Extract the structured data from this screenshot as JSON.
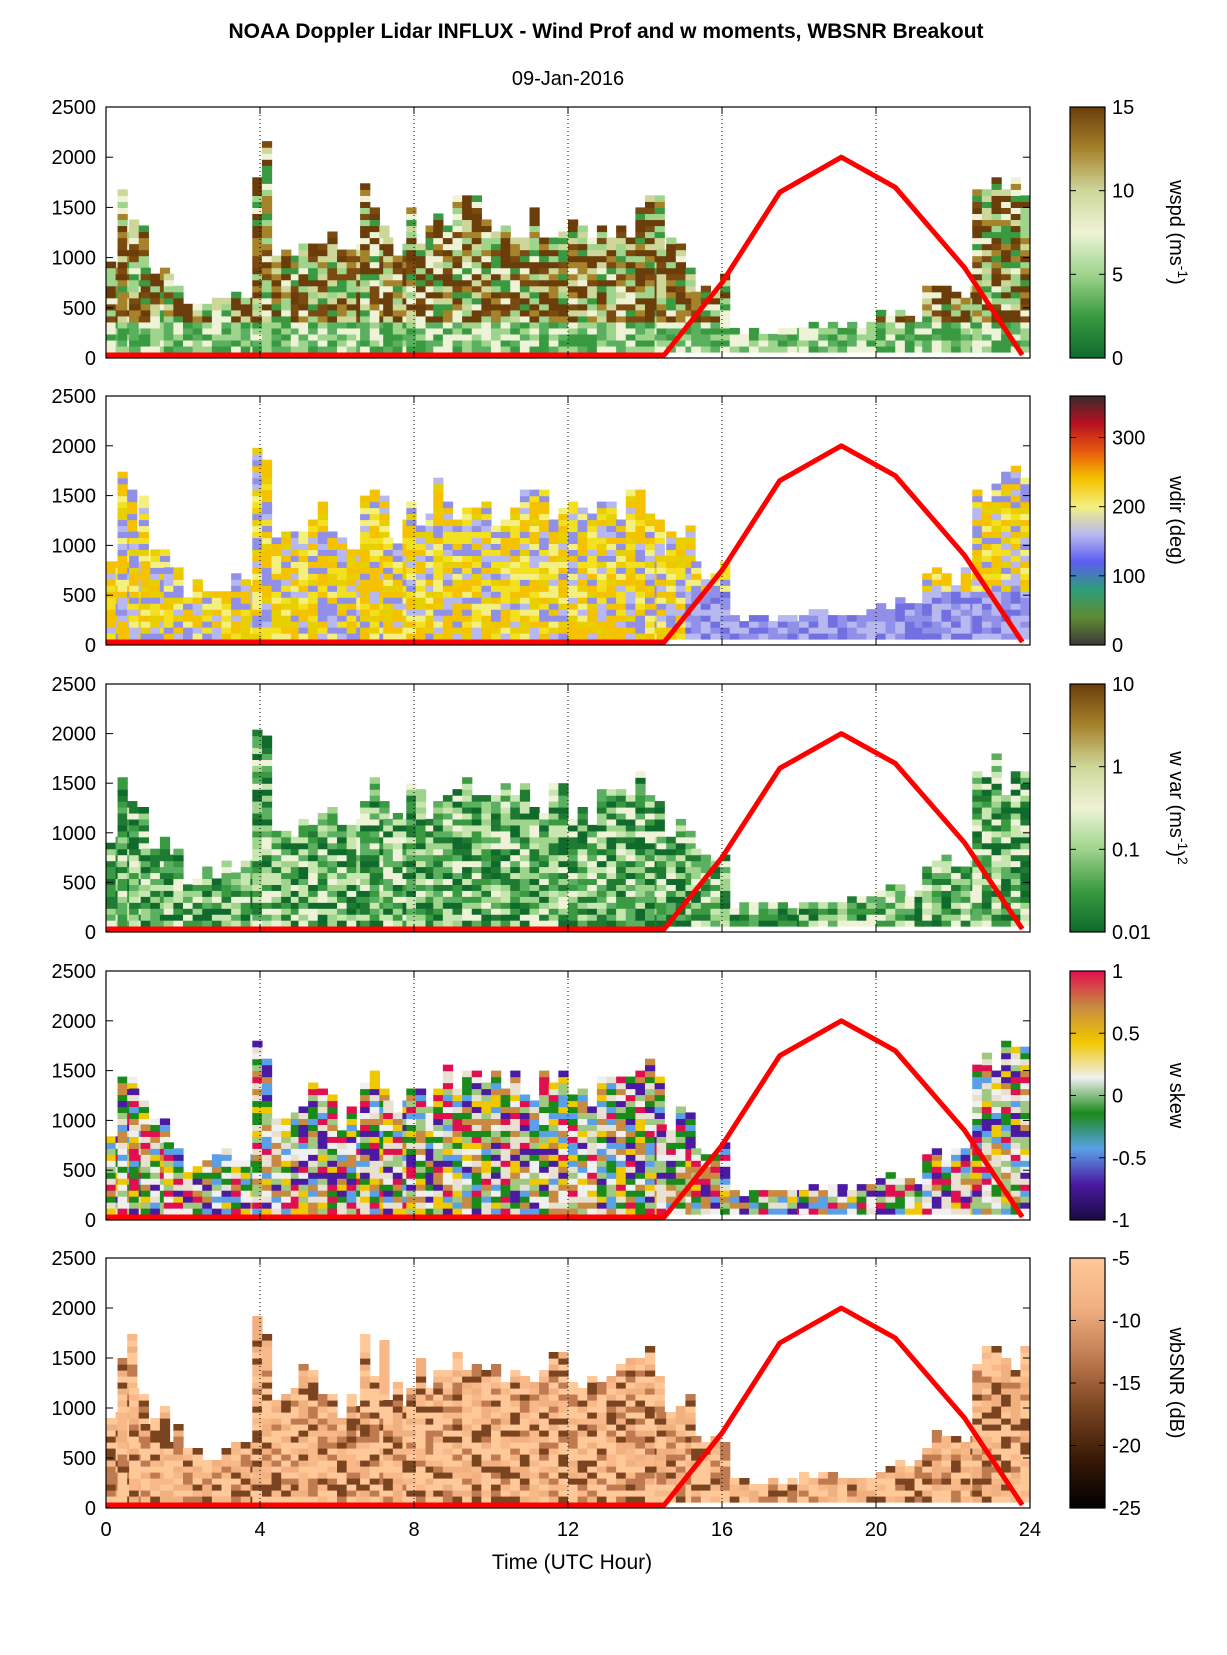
{
  "figure": {
    "title": "NOAA Doppler Lidar INFLUX - Wind Prof and w moments, WBSNR Breakout",
    "subtitle": "09-Jan-2016",
    "xlabel": "Time (UTC Hour)"
  },
  "chart_data": [
    {
      "type": "heatmap",
      "quantity": "wspd",
      "colorbar_label": "wspd (ms-1)",
      "colorbar_label_main": "wspd (ms",
      "colorbar_label_sup": "-1",
      "colorbar_label_end": ")",
      "colorbar_ticks": [
        "15",
        "10",
        "5",
        "0"
      ],
      "colorbar_range": [
        0,
        15
      ],
      "colormap": [
        "#0f6a2c",
        "#3a9a42",
        "#9fd48c",
        "#eef3d7",
        "#cdd79a",
        "#a6822b",
        "#6b3d0a"
      ],
      "yticks": [
        "2500",
        "2000",
        "1500",
        "1000",
        "500",
        "0"
      ],
      "ylim": [
        0,
        2500
      ],
      "xlim": [
        0,
        24
      ]
    },
    {
      "type": "heatmap",
      "quantity": "wdir",
      "colorbar_label": "wdir (deg)",
      "colorbar_ticks": [
        "300",
        "200",
        "100",
        "0"
      ],
      "colorbar_range": [
        0,
        360
      ],
      "colormap": [
        "#3a3a3a",
        "#5f8a32",
        "#2e9e7a",
        "#5a5ef0",
        "#b8b8f0",
        "#f3f080",
        "#f5c200",
        "#e85a10",
        "#b81020",
        "#3a2a2a"
      ],
      "yticks": [
        "2500",
        "2000",
        "1500",
        "1000",
        "500",
        "0"
      ],
      "ylim": [
        0,
        2500
      ],
      "xlim": [
        0,
        24
      ]
    },
    {
      "type": "heatmap",
      "quantity": "w var",
      "colorbar_label": "w var (ms-1)2",
      "colorbar_label_main": "w var (ms",
      "colorbar_label_sup": "-1",
      "colorbar_label_end": ")",
      "colorbar_label_sup2": "2",
      "colorbar_ticks": [
        "10",
        "1",
        "0.1",
        "0.01"
      ],
      "colorbar_scale": "log",
      "colorbar_range": [
        0.01,
        10
      ],
      "colormap": [
        "#0f6a2c",
        "#3a9a42",
        "#9fd48c",
        "#eef3d7",
        "#cdd79a",
        "#a6822b",
        "#6b3d0a"
      ],
      "yticks": [
        "2500",
        "2000",
        "1500",
        "1000",
        "500",
        "0"
      ],
      "ylim": [
        0,
        2500
      ],
      "xlim": [
        0,
        24
      ]
    },
    {
      "type": "heatmap",
      "quantity": "w skew",
      "colorbar_label": "w skew",
      "colorbar_ticks": [
        "1",
        "0.5",
        "0",
        "-0.5",
        "-1"
      ],
      "colorbar_range": [
        -1,
        1
      ],
      "colormap": [
        "#1a0a40",
        "#4a1aa0",
        "#5aa0e8",
        "#1a8a1a",
        "#f0f0f0",
        "#f0c800",
        "#c88a40",
        "#e01050"
      ],
      "yticks": [
        "2500",
        "2000",
        "1500",
        "1000",
        "500",
        "0"
      ],
      "ylim": [
        0,
        2500
      ],
      "xlim": [
        0,
        24
      ]
    },
    {
      "type": "heatmap",
      "quantity": "wbSNR",
      "colorbar_label": "wbSNR (dB)",
      "colorbar_ticks": [
        "-5",
        "-10",
        "-15",
        "-20",
        "-25"
      ],
      "colorbar_range": [
        -25,
        -5
      ],
      "colormap": [
        "#000000",
        "#3a1a08",
        "#7a4420",
        "#c07a50",
        "#f0b080",
        "#ffc898"
      ],
      "yticks": [
        "2500",
        "2000",
        "1500",
        "1000",
        "500",
        "0"
      ],
      "ylim": [
        0,
        2500
      ],
      "xlim": [
        0,
        24
      ]
    }
  ],
  "xaxis": {
    "ticks": [
      {
        "value": 0,
        "label": "0"
      },
      {
        "value": 4,
        "label": "4"
      },
      {
        "value": 8,
        "label": "8"
      },
      {
        "value": 12,
        "label": "12"
      },
      {
        "value": 16,
        "label": "16"
      },
      {
        "value": 20,
        "label": "20"
      },
      {
        "value": 24,
        "label": "24"
      }
    ],
    "gridlines_dotted": [
      4,
      8,
      12,
      16,
      20
    ]
  },
  "overlay_red_curve": {
    "color": "#ff0000",
    "baseline_until": 14.5,
    "points": [
      [
        0,
        30
      ],
      [
        14.5,
        30
      ],
      [
        16,
        750
      ],
      [
        17.5,
        1650
      ],
      [
        19.1,
        2000
      ],
      [
        20.5,
        1700
      ],
      [
        22.3,
        900
      ],
      [
        23.8,
        30
      ]
    ]
  },
  "colors": {
    "red_curve": "#ff0000",
    "axis": "#000000",
    "no_data": "#ffffff"
  }
}
